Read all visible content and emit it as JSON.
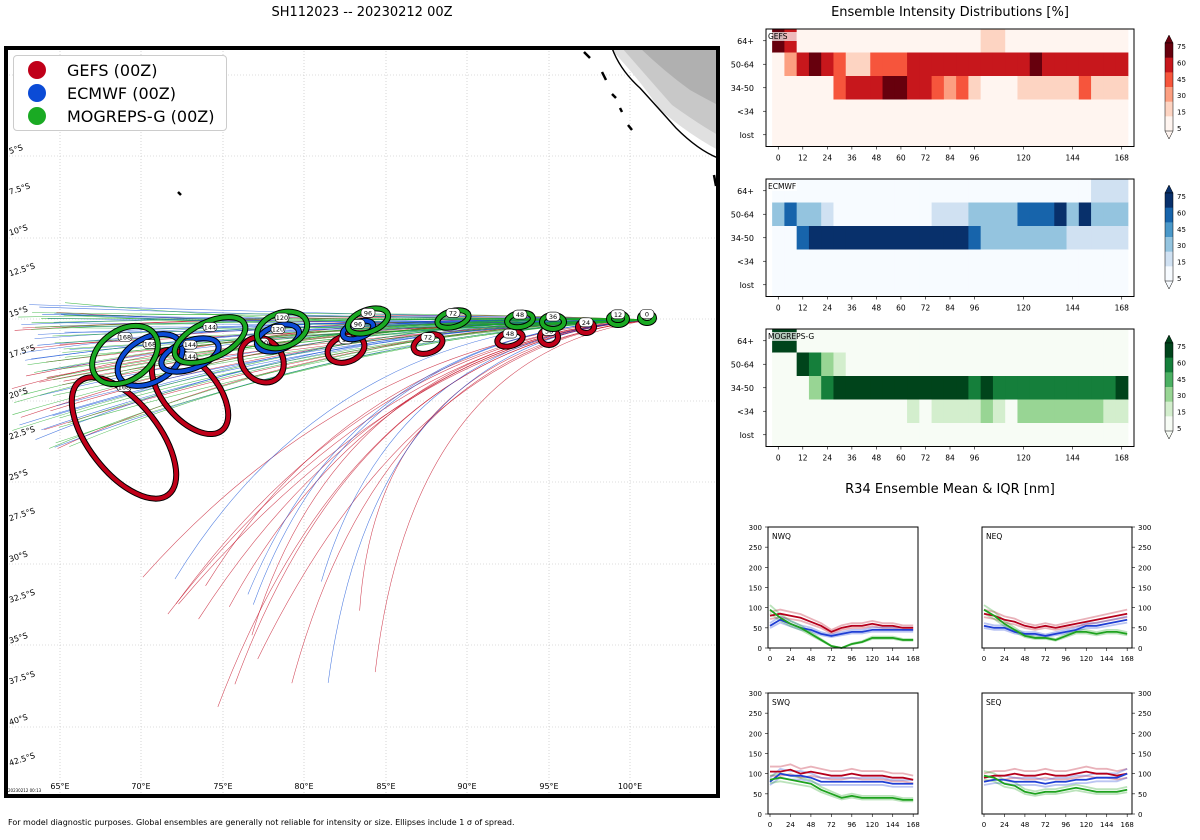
{
  "map": {
    "title": "SH112023 -- 20230212 00Z",
    "footnote": "For model diagnostic purposes. Global ensembles are generally not reliable for intensity or size. Ellipses include 1 σ of spread.",
    "timestamp_label": "20230212 00:13",
    "lon_ticks": [
      "65°E",
      "70°E",
      "75°E",
      "80°E",
      "85°E",
      "90°E",
      "95°E",
      "100°E"
    ],
    "lat_ticks": [
      "5°S",
      "7.5°S",
      "10°S",
      "12.5°S",
      "15°S",
      "17.5°S",
      "20°S",
      "22.5°S",
      "25°S",
      "27.5°S",
      "30°S",
      "32.5°S",
      "35°S",
      "37.5°S",
      "40°S",
      "42.5°S"
    ],
    "legend": [
      {
        "label": "GEFS (00Z)",
        "color": "#c00019"
      },
      {
        "label": "ECMWF (00Z)",
        "color": "#0b4bd6"
      },
      {
        "label": "MOGREPS-G (00Z)",
        "color": "#1aaa23"
      }
    ],
    "ellipse_hours": {
      "gefs": [
        "0",
        "12",
        "24",
        "36",
        "48",
        "72",
        "96",
        "120",
        "144",
        "168"
      ],
      "ecmwf": [
        "96",
        "120",
        "144",
        "168"
      ],
      "mogreps": [
        "0",
        "12",
        "36",
        "48",
        "72",
        "96",
        "120",
        "144",
        "168"
      ]
    }
  },
  "intensity": {
    "title": "Ensemble Intensity Distributions [%]",
    "row_labels": [
      "64+",
      "50-64",
      "34-50",
      "<34",
      "lost"
    ],
    "x_ticks": [
      "0",
      "12",
      "24",
      "36",
      "48",
      "60",
      "72",
      "84",
      "96",
      "120",
      "144",
      "168"
    ],
    "colorbar_ticks": [
      "75",
      "60",
      "45",
      "30",
      "15",
      "5"
    ],
    "panels": [
      {
        "label": "GEFS",
        "color": "#b5161e"
      },
      {
        "label": "ECMWF",
        "color": "#0a3f87"
      },
      {
        "label": "MOGREPS-G",
        "color": "#00441b"
      }
    ]
  },
  "r34": {
    "title": "R34 Ensemble Mean & IQR [nm]",
    "quadrants": [
      "NWQ",
      "NEQ",
      "SWQ",
      "SEQ"
    ],
    "y_ticks": [
      "0",
      "50",
      "100",
      "150",
      "200",
      "250",
      "300"
    ],
    "x_ticks": [
      "0",
      "24",
      "48",
      "72",
      "96",
      "120",
      "144",
      "168"
    ]
  },
  "chart_data": [
    {
      "type": "heatmap",
      "title": "GEFS intensity distribution [%]",
      "hours": [
        0,
        6,
        12,
        18,
        24,
        30,
        36,
        42,
        48,
        54,
        60,
        66,
        72,
        78,
        84,
        90,
        96,
        102,
        108,
        114,
        120,
        126,
        132,
        138,
        144,
        150,
        156,
        162,
        168
      ],
      "rows": [
        "64+",
        "50-64",
        "34-50",
        "<34",
        "lost"
      ],
      "values": [
        [
          80,
          60,
          15,
          0,
          0,
          0,
          0,
          0,
          0,
          0,
          0,
          0,
          0,
          0,
          0,
          10,
          0,
          30,
          30,
          15,
          15,
          15,
          15,
          15,
          15,
          15,
          15,
          15,
          15
        ],
        [
          5,
          40,
          60,
          85,
          70,
          50,
          30,
          30,
          50,
          50,
          50,
          60,
          60,
          60,
          70,
          70,
          70,
          70,
          70,
          70,
          70,
          80,
          70,
          70,
          70,
          60,
          70,
          70,
          70
        ],
        [
          5,
          5,
          5,
          5,
          15,
          50,
          60,
          70,
          70,
          80,
          80,
          70,
          70,
          50,
          40,
          50,
          30,
          10,
          10,
          10,
          30,
          30,
          30,
          30,
          30,
          50,
          30,
          30,
          30
        ],
        [
          10,
          0,
          15,
          10,
          15,
          0,
          10,
          0,
          0,
          0,
          0,
          0,
          0,
          0,
          0,
          0,
          0,
          0,
          0,
          0,
          0,
          0,
          0,
          0,
          0,
          0,
          0,
          0,
          0
        ],
        [
          5,
          5,
          5,
          5,
          5,
          5,
          5,
          5,
          5,
          5,
          5,
          5,
          5,
          5,
          5,
          5,
          5,
          5,
          5,
          5,
          5,
          5,
          5,
          5,
          5,
          5,
          5,
          5,
          5
        ]
      ]
    },
    {
      "type": "heatmap",
      "title": "ECMWF intensity distribution [%]",
      "hours": [
        0,
        6,
        12,
        18,
        24,
        30,
        36,
        42,
        48,
        54,
        60,
        66,
        72,
        78,
        84,
        90,
        96,
        102,
        108,
        114,
        120,
        126,
        132,
        138,
        144,
        150,
        156,
        162,
        168
      ],
      "rows": [
        "64+",
        "50-64",
        "34-50",
        "<34",
        "lost"
      ],
      "values": [
        [
          0,
          0,
          0,
          0,
          0,
          0,
          0,
          0,
          0,
          0,
          0,
          0,
          0,
          0,
          0,
          0,
          0,
          0,
          0,
          0,
          0,
          0,
          0,
          0,
          0,
          0,
          30,
          30,
          30
        ],
        [
          40,
          60,
          45,
          45,
          30,
          15,
          15,
          15,
          15,
          15,
          15,
          15,
          15,
          30,
          30,
          30,
          45,
          45,
          45,
          45,
          60,
          60,
          60,
          75,
          45,
          75,
          45,
          45,
          45
        ],
        [
          15,
          15,
          60,
          80,
          80,
          90,
          90,
          90,
          90,
          90,
          90,
          90,
          90,
          80,
          80,
          75,
          60,
          45,
          45,
          45,
          45,
          45,
          45,
          45,
          30,
          30,
          30,
          30,
          30
        ],
        [
          5,
          5,
          5,
          5,
          5,
          5,
          5,
          5,
          15,
          5,
          15,
          15,
          15,
          15,
          15,
          15,
          15,
          15,
          15,
          15,
          15,
          15,
          15,
          5,
          5,
          15,
          5,
          5,
          5
        ],
        [
          5,
          5,
          5,
          5,
          5,
          5,
          5,
          5,
          5,
          5,
          5,
          5,
          5,
          5,
          5,
          5,
          5,
          5,
          5,
          5,
          5,
          5,
          5,
          5,
          5,
          5,
          5,
          5,
          5
        ]
      ]
    },
    {
      "type": "heatmap",
      "title": "MOGREPS-G intensity distribution [%]",
      "hours": [
        0,
        6,
        12,
        18,
        24,
        30,
        36,
        42,
        48,
        54,
        60,
        66,
        72,
        78,
        84,
        90,
        96,
        102,
        108,
        114,
        120,
        126,
        132,
        138,
        144,
        150,
        156,
        162,
        168
      ],
      "rows": [
        "64+",
        "50-64",
        "34-50",
        "<34",
        "lost"
      ],
      "values": [
        [
          90,
          90,
          5,
          5,
          5,
          5,
          5,
          5,
          5,
          5,
          5,
          5,
          5,
          5,
          5,
          5,
          5,
          5,
          5,
          5,
          5,
          5,
          5,
          5,
          5,
          5,
          5,
          5,
          5
        ],
        [
          5,
          15,
          80,
          60,
          45,
          30,
          15,
          15,
          5,
          5,
          5,
          5,
          5,
          15,
          15,
          15,
          15,
          15,
          15,
          15,
          15,
          15,
          15,
          15,
          15,
          15,
          5,
          15,
          15
        ],
        [
          5,
          5,
          15,
          45,
          60,
          75,
          90,
          90,
          90,
          90,
          90,
          90,
          75,
          75,
          75,
          75,
          60,
          75,
          60,
          60,
          60,
          60,
          60,
          60,
          60,
          60,
          60,
          60,
          75
        ],
        [
          5,
          5,
          5,
          5,
          5,
          5,
          15,
          15,
          15,
          15,
          15,
          30,
          15,
          30,
          30,
          30,
          30,
          45,
          30,
          15,
          45,
          45,
          45,
          45,
          45,
          45,
          45,
          30,
          30
        ],
        [
          5,
          5,
          5,
          5,
          5,
          5,
          5,
          5,
          5,
          5,
          5,
          5,
          5,
          5,
          5,
          5,
          5,
          5,
          5,
          5,
          5,
          5,
          5,
          5,
          5,
          5,
          5,
          5,
          5
        ]
      ]
    },
    {
      "type": "line",
      "title": "R34 NWQ [nm]",
      "x": [
        0,
        12,
        24,
        36,
        48,
        60,
        72,
        84,
        96,
        108,
        120,
        132,
        144,
        156,
        168
      ],
      "ylim": [
        0,
        300
      ],
      "series": [
        {
          "name": "GEFS",
          "values": [
            80,
            85,
            80,
            75,
            65,
            55,
            40,
            50,
            55,
            55,
            60,
            55,
            55,
            50,
            50
          ]
        },
        {
          "name": "ECMWF",
          "values": [
            55,
            70,
            60,
            50,
            45,
            35,
            30,
            35,
            40,
            40,
            45,
            45,
            45,
            45,
            45
          ]
        },
        {
          "name": "MOGREPS-G",
          "values": [
            95,
            75,
            60,
            50,
            35,
            20,
            5,
            0,
            10,
            15,
            25,
            25,
            25,
            20,
            20
          ]
        }
      ]
    },
    {
      "type": "line",
      "title": "R34 NEQ [nm]",
      "x": [
        0,
        12,
        24,
        36,
        48,
        60,
        72,
        84,
        96,
        108,
        120,
        132,
        144,
        156,
        168
      ],
      "ylim": [
        0,
        300
      ],
      "series": [
        {
          "name": "GEFS",
          "values": [
            85,
            80,
            70,
            65,
            55,
            50,
            55,
            50,
            55,
            60,
            65,
            70,
            75,
            80,
            85
          ]
        },
        {
          "name": "ECMWF",
          "values": [
            55,
            50,
            50,
            40,
            35,
            35,
            30,
            35,
            40,
            45,
            55,
            55,
            60,
            65,
            70
          ]
        },
        {
          "name": "MOGREPS-G",
          "values": [
            95,
            80,
            60,
            45,
            30,
            25,
            25,
            20,
            30,
            40,
            40,
            35,
            40,
            40,
            35
          ]
        }
      ]
    },
    {
      "type": "line",
      "title": "R34 SWQ [nm]",
      "x": [
        0,
        12,
        24,
        36,
        48,
        60,
        72,
        84,
        96,
        108,
        120,
        132,
        144,
        156,
        168
      ],
      "ylim": [
        0,
        300
      ],
      "series": [
        {
          "name": "GEFS",
          "values": [
            105,
            105,
            110,
            100,
            105,
            100,
            95,
            95,
            100,
            95,
            95,
            95,
            90,
            90,
            85
          ]
        },
        {
          "name": "ECMWF",
          "values": [
            80,
            100,
            95,
            95,
            90,
            80,
            80,
            80,
            80,
            80,
            80,
            80,
            75,
            75,
            75
          ]
        },
        {
          "name": "MOGREPS-G",
          "values": [
            85,
            90,
            85,
            80,
            75,
            60,
            50,
            40,
            45,
            40,
            40,
            40,
            40,
            35,
            35
          ]
        }
      ]
    },
    {
      "type": "line",
      "title": "R34 SEQ [nm]",
      "x": [
        0,
        12,
        24,
        36,
        48,
        60,
        72,
        84,
        96,
        108,
        120,
        132,
        144,
        156,
        168
      ],
      "ylim": [
        0,
        300
      ],
      "series": [
        {
          "name": "GEFS",
          "values": [
            90,
            95,
            95,
            100,
            95,
            95,
            100,
            95,
            95,
            100,
            105,
            100,
            100,
            95,
            100
          ]
        },
        {
          "name": "ECMWF",
          "values": [
            80,
            85,
            85,
            80,
            80,
            80,
            75,
            80,
            80,
            85,
            85,
            90,
            90,
            90,
            100
          ]
        },
        {
          "name": "MOGREPS-G",
          "values": [
            95,
            90,
            75,
            70,
            55,
            50,
            55,
            55,
            60,
            65,
            60,
            55,
            55,
            55,
            60
          ]
        }
      ]
    }
  ]
}
